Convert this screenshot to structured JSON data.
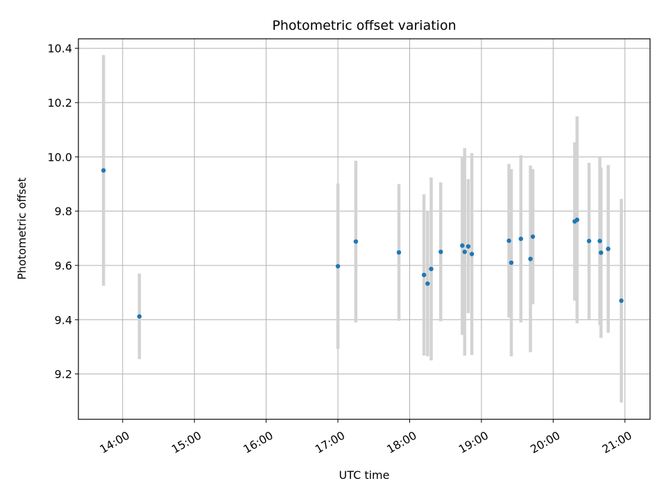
{
  "chart_data": {
    "type": "scatter",
    "title": "Photometric offset variation",
    "xlabel": "UTC time",
    "ylabel": "Photometric offset",
    "xlim": [
      "13:23",
      "21:21"
    ],
    "ylim": [
      9.033,
      10.435
    ],
    "grid": true,
    "x_ticks": [
      "14:00",
      "15:00",
      "16:00",
      "17:00",
      "18:00",
      "19:00",
      "20:00",
      "21:00"
    ],
    "y_ticks": [
      9.2,
      9.4,
      9.6,
      9.8,
      10.0,
      10.2,
      10.4
    ],
    "colors": {
      "point": "#1f77b4",
      "errorbar": "#d3d3d3",
      "grid": "#b0b0b0"
    },
    "series": [
      {
        "points": [
          {
            "x": "13:44",
            "y": 9.95,
            "low": 9.525,
            "high": 10.375
          },
          {
            "x": "14:14",
            "y": 9.412,
            "low": 9.255,
            "high": 9.57
          },
          {
            "x": "17:00",
            "y": 9.597,
            "low": 9.292,
            "high": 9.902
          },
          {
            "x": "17:15",
            "y": 9.688,
            "low": 9.39,
            "high": 9.986
          },
          {
            "x": "17:51",
            "y": 9.648,
            "low": 9.396,
            "high": 9.9
          },
          {
            "x": "18:12",
            "y": 9.565,
            "low": 9.268,
            "high": 9.862
          },
          {
            "x": "18:15",
            "y": 9.533,
            "low": 9.265,
            "high": 9.801
          },
          {
            "x": "18:18",
            "y": 9.587,
            "low": 9.25,
            "high": 9.924
          },
          {
            "x": "18:26",
            "y": 9.65,
            "low": 9.394,
            "high": 9.906
          },
          {
            "x": "18:44",
            "y": 9.673,
            "low": 9.344,
            "high": 10.002
          },
          {
            "x": "18:46",
            "y": 9.65,
            "low": 9.268,
            "high": 10.032
          },
          {
            "x": "18:49",
            "y": 9.67,
            "low": 9.424,
            "high": 9.918
          },
          {
            "x": "18:52",
            "y": 9.642,
            "low": 9.27,
            "high": 10.014
          },
          {
            "x": "19:23",
            "y": 9.691,
            "low": 9.408,
            "high": 9.974
          },
          {
            "x": "19:25",
            "y": 9.61,
            "low": 9.265,
            "high": 9.955
          },
          {
            "x": "19:33",
            "y": 9.698,
            "low": 9.39,
            "high": 10.006
          },
          {
            "x": "19:41",
            "y": 9.624,
            "low": 9.28,
            "high": 9.968
          },
          {
            "x": "19:43",
            "y": 9.706,
            "low": 9.457,
            "high": 9.955
          },
          {
            "x": "20:18",
            "y": 9.762,
            "low": 9.47,
            "high": 10.054
          },
          {
            "x": "20:20",
            "y": 9.768,
            "low": 9.387,
            "high": 10.149
          },
          {
            "x": "20:30",
            "y": 9.69,
            "low": 9.402,
            "high": 9.978
          },
          {
            "x": "20:39",
            "y": 9.69,
            "low": 9.38,
            "high": 10.0
          },
          {
            "x": "20:40",
            "y": 9.647,
            "low": 9.333,
            "high": 9.961
          },
          {
            "x": "20:46",
            "y": 9.661,
            "low": 9.352,
            "high": 9.97
          },
          {
            "x": "20:57",
            "y": 9.47,
            "low": 9.095,
            "high": 9.845
          }
        ]
      }
    ]
  }
}
